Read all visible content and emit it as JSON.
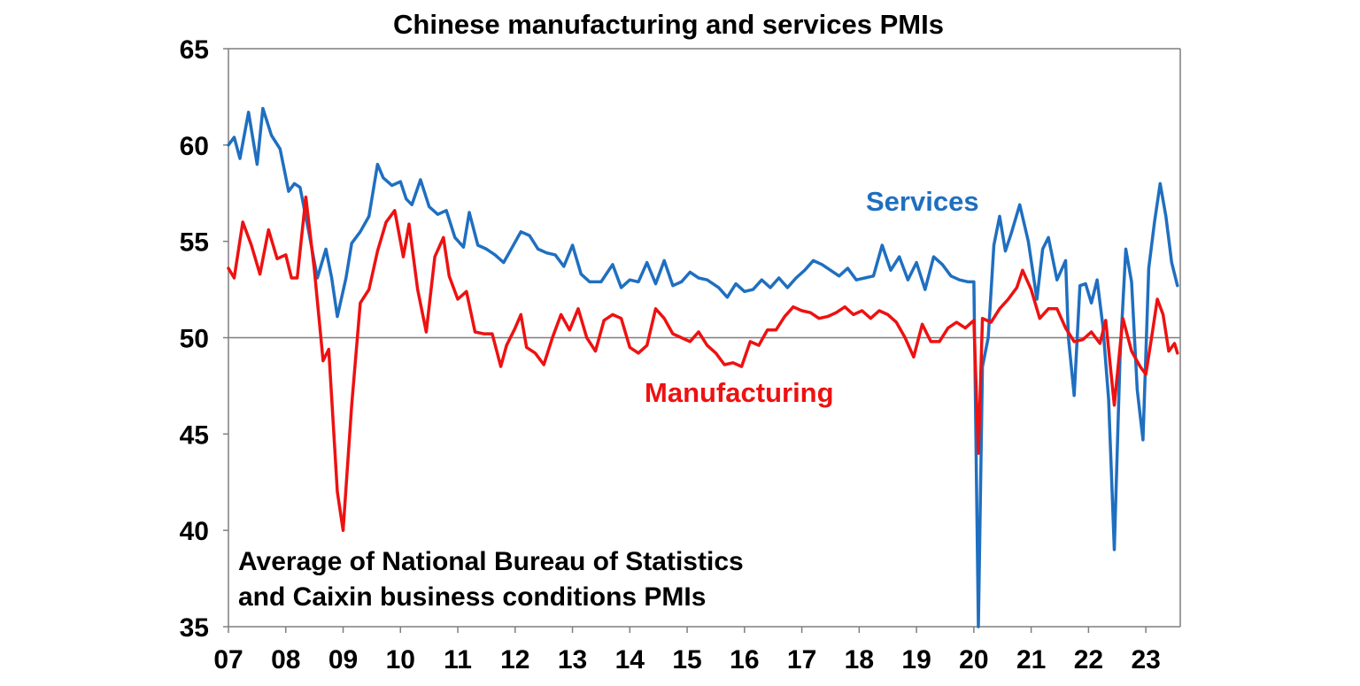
{
  "chart_data": {
    "type": "line",
    "title": "Chinese manufacturing and services PMIs",
    "note_lines": [
      "Average of National Bureau of Statistics",
      "and Caixin business conditions PMIs"
    ],
    "xlabel": "",
    "ylabel": "",
    "x_tick_labels": [
      "07",
      "08",
      "09",
      "10",
      "11",
      "12",
      "13",
      "14",
      "15",
      "16",
      "17",
      "18",
      "19",
      "20",
      "21",
      "22",
      "23"
    ],
    "x_range": [
      2007.0,
      2023.6
    ],
    "ylim": [
      35,
      65
    ],
    "y_ticks": [
      35,
      40,
      45,
      50,
      55,
      60,
      65
    ],
    "reference_line": 50,
    "grid": false,
    "colors": {
      "services": "#1f6fc0",
      "manufacturing": "#ee1111",
      "axis": "#7f7f7f",
      "reference": "#7f7f7f"
    },
    "series": [
      {
        "name": "Services",
        "key": "services",
        "x": [
          2007.0,
          2007.1,
          2007.2,
          2007.35,
          2007.5,
          2007.6,
          2007.75,
          2007.9,
          2008.05,
          2008.15,
          2008.25,
          2008.4,
          2008.55,
          2008.7,
          2008.8,
          2008.9,
          2009.05,
          2009.15,
          2009.3,
          2009.45,
          2009.6,
          2009.7,
          2009.85,
          2010.0,
          2010.1,
          2010.2,
          2010.35,
          2010.5,
          2010.65,
          2010.8,
          2010.95,
          2011.1,
          2011.2,
          2011.35,
          2011.5,
          2011.65,
          2011.8,
          2011.95,
          2012.1,
          2012.25,
          2012.4,
          2012.55,
          2012.7,
          2012.85,
          2013.0,
          2013.15,
          2013.3,
          2013.5,
          2013.7,
          2013.85,
          2014.0,
          2014.15,
          2014.3,
          2014.45,
          2014.6,
          2014.75,
          2014.9,
          2015.05,
          2015.2,
          2015.35,
          2015.55,
          2015.7,
          2015.85,
          2016.0,
          2016.15,
          2016.3,
          2016.45,
          2016.6,
          2016.75,
          2016.9,
          2017.05,
          2017.2,
          2017.35,
          2017.5,
          2017.65,
          2017.8,
          2017.95,
          2018.1,
          2018.25,
          2018.4,
          2018.55,
          2018.7,
          2018.85,
          2019.0,
          2019.15,
          2019.3,
          2019.45,
          2019.6,
          2019.75,
          2019.9,
          2020.0,
          2020.08,
          2020.15,
          2020.25,
          2020.35,
          2020.45,
          2020.55,
          2020.65,
          2020.8,
          2020.95,
          2021.1,
          2021.2,
          2021.3,
          2021.45,
          2021.6,
          2021.65,
          2021.75,
          2021.85,
          2021.95,
          2022.05,
          2022.15,
          2022.25,
          2022.35,
          2022.45,
          2022.55,
          2022.65,
          2022.75,
          2022.85,
          2022.95,
          2023.05,
          2023.15,
          2023.25,
          2023.35,
          2023.45,
          2023.55
        ],
        "values": [
          60.0,
          60.4,
          59.3,
          61.7,
          59.0,
          61.9,
          60.5,
          59.8,
          57.6,
          58.0,
          57.8,
          55.5,
          53.1,
          54.6,
          53.1,
          51.1,
          53.1,
          54.9,
          55.5,
          56.3,
          59.0,
          58.3,
          57.9,
          58.1,
          57.2,
          56.9,
          58.2,
          56.8,
          56.4,
          56.6,
          55.2,
          54.7,
          56.5,
          54.8,
          54.6,
          54.3,
          53.9,
          54.7,
          55.5,
          55.3,
          54.6,
          54.4,
          54.3,
          53.7,
          54.8,
          53.3,
          52.9,
          52.9,
          53.8,
          52.6,
          53.0,
          52.9,
          53.9,
          52.8,
          54.0,
          52.7,
          52.9,
          53.4,
          53.1,
          53.0,
          52.6,
          52.1,
          52.8,
          52.4,
          52.5,
          53.0,
          52.6,
          53.1,
          52.6,
          53.1,
          53.5,
          54.0,
          53.8,
          53.5,
          53.2,
          53.6,
          53.0,
          53.1,
          53.2,
          54.8,
          53.5,
          54.2,
          53.0,
          53.9,
          52.5,
          54.2,
          53.8,
          53.2,
          53.0,
          52.9,
          52.9,
          35.0,
          48.5,
          50.0,
          54.8,
          56.3,
          54.5,
          55.4,
          56.9,
          55.0,
          52.0,
          54.6,
          55.2,
          53.0,
          54.0,
          50.0,
          47.0,
          52.7,
          52.8,
          51.8,
          53.0,
          50.6,
          46.8,
          39.0,
          49.0,
          54.6,
          52.9,
          47.3,
          44.7,
          53.6,
          56.0,
          58.0,
          56.3,
          53.9,
          52.7
        ]
      },
      {
        "name": "Manufacturing",
        "key": "manufacturing",
        "x": [
          2007.0,
          2007.1,
          2007.25,
          2007.4,
          2007.55,
          2007.7,
          2007.85,
          2008.0,
          2008.1,
          2008.2,
          2008.35,
          2008.5,
          2008.65,
          2008.75,
          2008.9,
          2009.0,
          2009.15,
          2009.3,
          2009.45,
          2009.6,
          2009.75,
          2009.9,
          2010.05,
          2010.15,
          2010.3,
          2010.45,
          2010.6,
          2010.75,
          2010.85,
          2011.0,
          2011.15,
          2011.3,
          2011.45,
          2011.6,
          2011.75,
          2011.85,
          2012.0,
          2012.1,
          2012.2,
          2012.35,
          2012.5,
          2012.65,
          2012.8,
          2012.95,
          2013.1,
          2013.25,
          2013.4,
          2013.55,
          2013.7,
          2013.85,
          2014.0,
          2014.15,
          2014.3,
          2014.45,
          2014.6,
          2014.75,
          2014.9,
          2015.05,
          2015.2,
          2015.35,
          2015.5,
          2015.65,
          2015.8,
          2015.95,
          2016.1,
          2016.25,
          2016.4,
          2016.55,
          2016.7,
          2016.85,
          2017.0,
          2017.15,
          2017.3,
          2017.45,
          2017.6,
          2017.75,
          2017.9,
          2018.05,
          2018.2,
          2018.35,
          2018.5,
          2018.65,
          2018.8,
          2018.95,
          2019.1,
          2019.25,
          2019.4,
          2019.55,
          2019.7,
          2019.85,
          2020.0,
          2020.08,
          2020.15,
          2020.3,
          2020.45,
          2020.6,
          2020.75,
          2020.85,
          2021.0,
          2021.15,
          2021.3,
          2021.45,
          2021.6,
          2021.75,
          2021.9,
          2022.05,
          2022.2,
          2022.3,
          2022.45,
          2022.6,
          2022.75,
          2022.9,
          2023.0,
          2023.1,
          2023.2,
          2023.3,
          2023.4,
          2023.5,
          2023.55
        ],
        "values": [
          53.6,
          53.1,
          56.0,
          54.8,
          53.3,
          55.6,
          54.1,
          54.3,
          53.1,
          53.1,
          57.3,
          53.5,
          48.8,
          49.4,
          42.0,
          40.0,
          46.5,
          51.8,
          52.5,
          54.5,
          56.0,
          56.6,
          54.2,
          55.9,
          52.5,
          50.3,
          54.2,
          55.2,
          53.2,
          52.0,
          52.4,
          50.3,
          50.2,
          50.2,
          48.5,
          49.6,
          50.5,
          51.2,
          49.5,
          49.2,
          48.6,
          50.0,
          51.2,
          50.4,
          51.5,
          50.0,
          49.3,
          50.9,
          51.2,
          51.0,
          49.5,
          49.2,
          49.6,
          51.5,
          51.0,
          50.2,
          50.0,
          49.8,
          50.3,
          49.6,
          49.2,
          48.6,
          48.7,
          48.5,
          49.8,
          49.6,
          50.4,
          50.4,
          51.1,
          51.6,
          51.4,
          51.3,
          51.0,
          51.1,
          51.3,
          51.6,
          51.2,
          51.4,
          51.0,
          51.4,
          51.2,
          50.8,
          50.0,
          49.0,
          50.7,
          49.8,
          49.8,
          50.5,
          50.8,
          50.5,
          50.9,
          44.0,
          51.0,
          50.8,
          51.5,
          52.0,
          52.6,
          53.5,
          52.5,
          51.0,
          51.5,
          51.5,
          50.5,
          49.8,
          49.9,
          50.3,
          49.7,
          50.9,
          46.5,
          51.0,
          49.3,
          48.5,
          48.1,
          50.0,
          52.0,
          51.2,
          49.3,
          49.7,
          49.2
        ]
      }
    ]
  }
}
